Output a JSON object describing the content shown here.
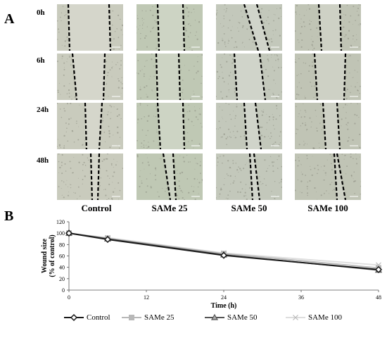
{
  "panels": {
    "a_label": "A",
    "b_label": "B"
  },
  "grid": {
    "rows": [
      "0h",
      "6h",
      "24h",
      "48h"
    ],
    "columns": [
      "Control",
      "SAMe 25",
      "SAMe 50",
      "SAMe 100"
    ]
  },
  "chart_data": {
    "type": "line",
    "x": [
      0,
      6,
      24,
      48
    ],
    "xticks": [
      "0",
      "12",
      "24",
      "36",
      "48"
    ],
    "yticks": [
      "0",
      "20",
      "40",
      "60",
      "80",
      "100",
      "120"
    ],
    "xlim": [
      0,
      48
    ],
    "ylim": [
      0,
      120
    ],
    "xlabel": "Time (h)",
    "ylabel": "Wound size (% of control)",
    "ylabel_lines": [
      "Wound size",
      "(% of control)"
    ],
    "grid": false,
    "legend_position": "bottom",
    "series": [
      {
        "name": "Control",
        "values": [
          100,
          89,
          61,
          36
        ],
        "color": "#1a1a1a",
        "marker": "diamond"
      },
      {
        "name": "SAMe 25",
        "values": [
          100,
          91,
          64,
          39
        ],
        "color": "#b8b8b8",
        "marker": "square"
      },
      {
        "name": "SAMe 50",
        "values": [
          100,
          90,
          62,
          35
        ],
        "color": "#555555",
        "marker": "triangle"
      },
      {
        "name": "SAMe 100",
        "values": [
          100,
          92,
          65,
          44
        ],
        "color": "#dedede",
        "marker": "x"
      }
    ]
  }
}
